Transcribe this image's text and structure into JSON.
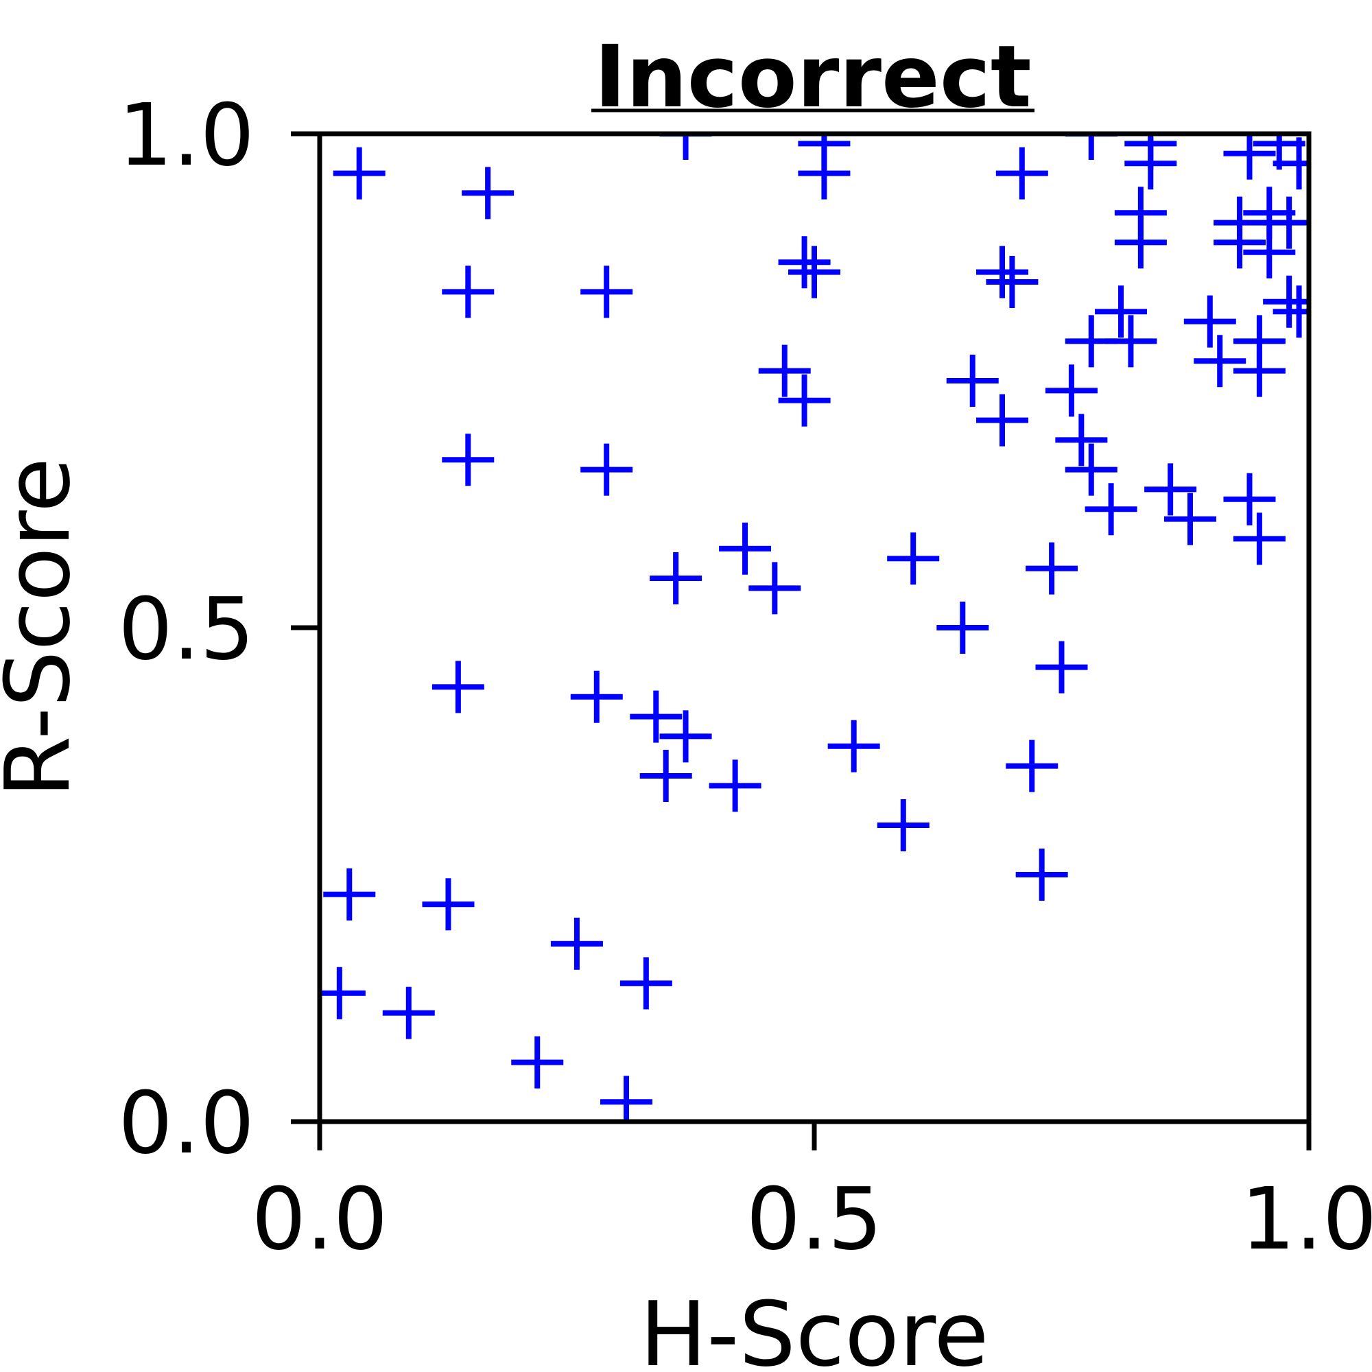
{
  "chart_data": {
    "type": "scatter",
    "title": "Incorrect",
    "xlabel": "H-Score",
    "ylabel": "R-Score",
    "xlim": [
      0.0,
      1.0
    ],
    "ylim": [
      0.0,
      1.0
    ],
    "xticks": [
      "0.0",
      "0.5",
      "1.0"
    ],
    "yticks": [
      "0.0",
      "0.5",
      "1.0"
    ],
    "grid": false,
    "legend": "none",
    "marker": "+",
    "color": "#0000ff",
    "series": [
      {
        "points": [
          {
            "x": 0.04,
            "y": 0.96
          },
          {
            "x": 0.17,
            "y": 0.94
          },
          {
            "x": 0.37,
            "y": 1.0
          },
          {
            "x": 0.51,
            "y": 0.99
          },
          {
            "x": 0.51,
            "y": 0.96
          },
          {
            "x": 0.71,
            "y": 0.96
          },
          {
            "x": 0.78,
            "y": 1.0
          },
          {
            "x": 0.84,
            "y": 0.99
          },
          {
            "x": 0.84,
            "y": 0.97
          },
          {
            "x": 0.94,
            "y": 0.98
          },
          {
            "x": 0.97,
            "y": 0.99
          },
          {
            "x": 0.99,
            "y": 0.97
          },
          {
            "x": 0.15,
            "y": 0.84
          },
          {
            "x": 0.29,
            "y": 0.84
          },
          {
            "x": 0.49,
            "y": 0.87
          },
          {
            "x": 0.5,
            "y": 0.86
          },
          {
            "x": 0.69,
            "y": 0.86
          },
          {
            "x": 0.7,
            "y": 0.85
          },
          {
            "x": 0.83,
            "y": 0.92
          },
          {
            "x": 0.83,
            "y": 0.89
          },
          {
            "x": 0.93,
            "y": 0.91
          },
          {
            "x": 0.93,
            "y": 0.89
          },
          {
            "x": 0.96,
            "y": 0.92
          },
          {
            "x": 0.96,
            "y": 0.88
          },
          {
            "x": 0.98,
            "y": 0.91
          },
          {
            "x": 0.98,
            "y": 0.83
          },
          {
            "x": 0.99,
            "y": 0.82
          },
          {
            "x": 0.81,
            "y": 0.82
          },
          {
            "x": 0.78,
            "y": 0.79
          },
          {
            "x": 0.82,
            "y": 0.79
          },
          {
            "x": 0.9,
            "y": 0.81
          },
          {
            "x": 0.91,
            "y": 0.77
          },
          {
            "x": 0.95,
            "y": 0.79
          },
          {
            "x": 0.95,
            "y": 0.76
          },
          {
            "x": 0.47,
            "y": 0.76
          },
          {
            "x": 0.49,
            "y": 0.73
          },
          {
            "x": 0.66,
            "y": 0.75
          },
          {
            "x": 0.69,
            "y": 0.71
          },
          {
            "x": 0.76,
            "y": 0.74
          },
          {
            "x": 0.77,
            "y": 0.69
          },
          {
            "x": 0.78,
            "y": 0.66
          },
          {
            "x": 0.8,
            "y": 0.62
          },
          {
            "x": 0.86,
            "y": 0.64
          },
          {
            "x": 0.88,
            "y": 0.61
          },
          {
            "x": 0.94,
            "y": 0.63
          },
          {
            "x": 0.95,
            "y": 0.59
          },
          {
            "x": 0.15,
            "y": 0.67
          },
          {
            "x": 0.29,
            "y": 0.66
          },
          {
            "x": 0.43,
            "y": 0.58
          },
          {
            "x": 0.36,
            "y": 0.55
          },
          {
            "x": 0.46,
            "y": 0.54
          },
          {
            "x": 0.6,
            "y": 0.57
          },
          {
            "x": 0.74,
            "y": 0.56
          },
          {
            "x": 0.65,
            "y": 0.5
          },
          {
            "x": 0.75,
            "y": 0.46
          },
          {
            "x": 0.14,
            "y": 0.44
          },
          {
            "x": 0.28,
            "y": 0.43
          },
          {
            "x": 0.34,
            "y": 0.41
          },
          {
            "x": 0.37,
            "y": 0.39
          },
          {
            "x": 0.35,
            "y": 0.35
          },
          {
            "x": 0.42,
            "y": 0.34
          },
          {
            "x": 0.54,
            "y": 0.38
          },
          {
            "x": 0.72,
            "y": 0.36
          },
          {
            "x": 0.59,
            "y": 0.3
          },
          {
            "x": 0.73,
            "y": 0.25
          },
          {
            "x": 0.03,
            "y": 0.23
          },
          {
            "x": 0.13,
            "y": 0.22
          },
          {
            "x": 0.26,
            "y": 0.18
          },
          {
            "x": 0.33,
            "y": 0.14
          },
          {
            "x": 0.02,
            "y": 0.13
          },
          {
            "x": 0.09,
            "y": 0.11
          },
          {
            "x": 0.22,
            "y": 0.06
          },
          {
            "x": 0.31,
            "y": 0.02
          }
        ]
      }
    ]
  }
}
